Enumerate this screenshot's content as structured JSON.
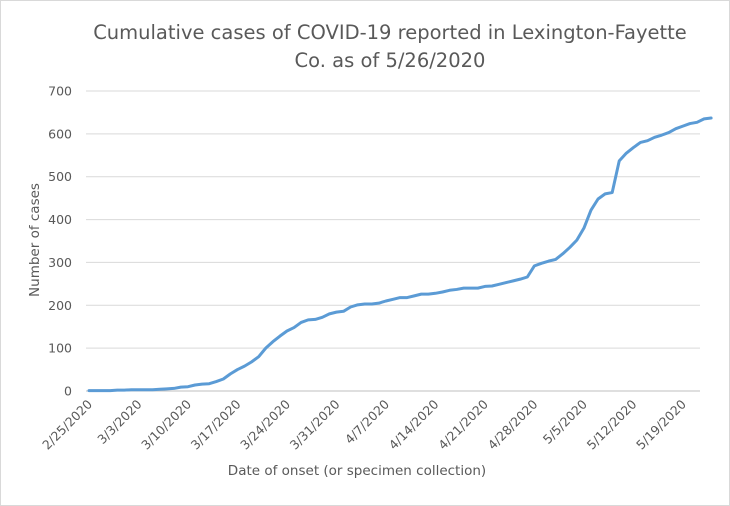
{
  "chart_data": {
    "type": "line",
    "title_line1": "Cumulative cases of COVID-19 reported in Lexington-Fayette",
    "title_line2": "Co.  as of 5/26/2020",
    "xlabel": "Date of onset (or specimen collection)",
    "ylabel": "Number of cases",
    "ylim": [
      0,
      700
    ],
    "yticks": [
      0,
      100,
      200,
      300,
      400,
      500,
      600,
      700
    ],
    "xticks": [
      "2/25/2020",
      "3/3/2020",
      "3/10/2020",
      "3/17/2020",
      "3/24/2020",
      "3/31/2020",
      "4/7/2020",
      "4/14/2020",
      "4/21/2020",
      "4/28/2020",
      "5/5/2020",
      "5/12/2020",
      "5/19/2020"
    ],
    "x_start_date": "2/25/2020",
    "grid": "horizontal",
    "legend": "none",
    "series_color": "#5b9bd5",
    "values": [
      1,
      1,
      1,
      1,
      2,
      2,
      3,
      3,
      3,
      3,
      4,
      5,
      6,
      9,
      10,
      14,
      16,
      17,
      22,
      28,
      40,
      50,
      58,
      68,
      80,
      100,
      115,
      128,
      140,
      148,
      160,
      166,
      167,
      172,
      180,
      184,
      186,
      196,
      201,
      203,
      203,
      205,
      210,
      214,
      218,
      218,
      222,
      226,
      226,
      228,
      231,
      235,
      237,
      240,
      240,
      240,
      244,
      245,
      249,
      253,
      257,
      261,
      266,
      292,
      298,
      303,
      307,
      320,
      335,
      352,
      380,
      422,
      448,
      460,
      463,
      537,
      555,
      568,
      580,
      584,
      592,
      597,
      603,
      612,
      618,
      624,
      627,
      635,
      637
    ]
  }
}
